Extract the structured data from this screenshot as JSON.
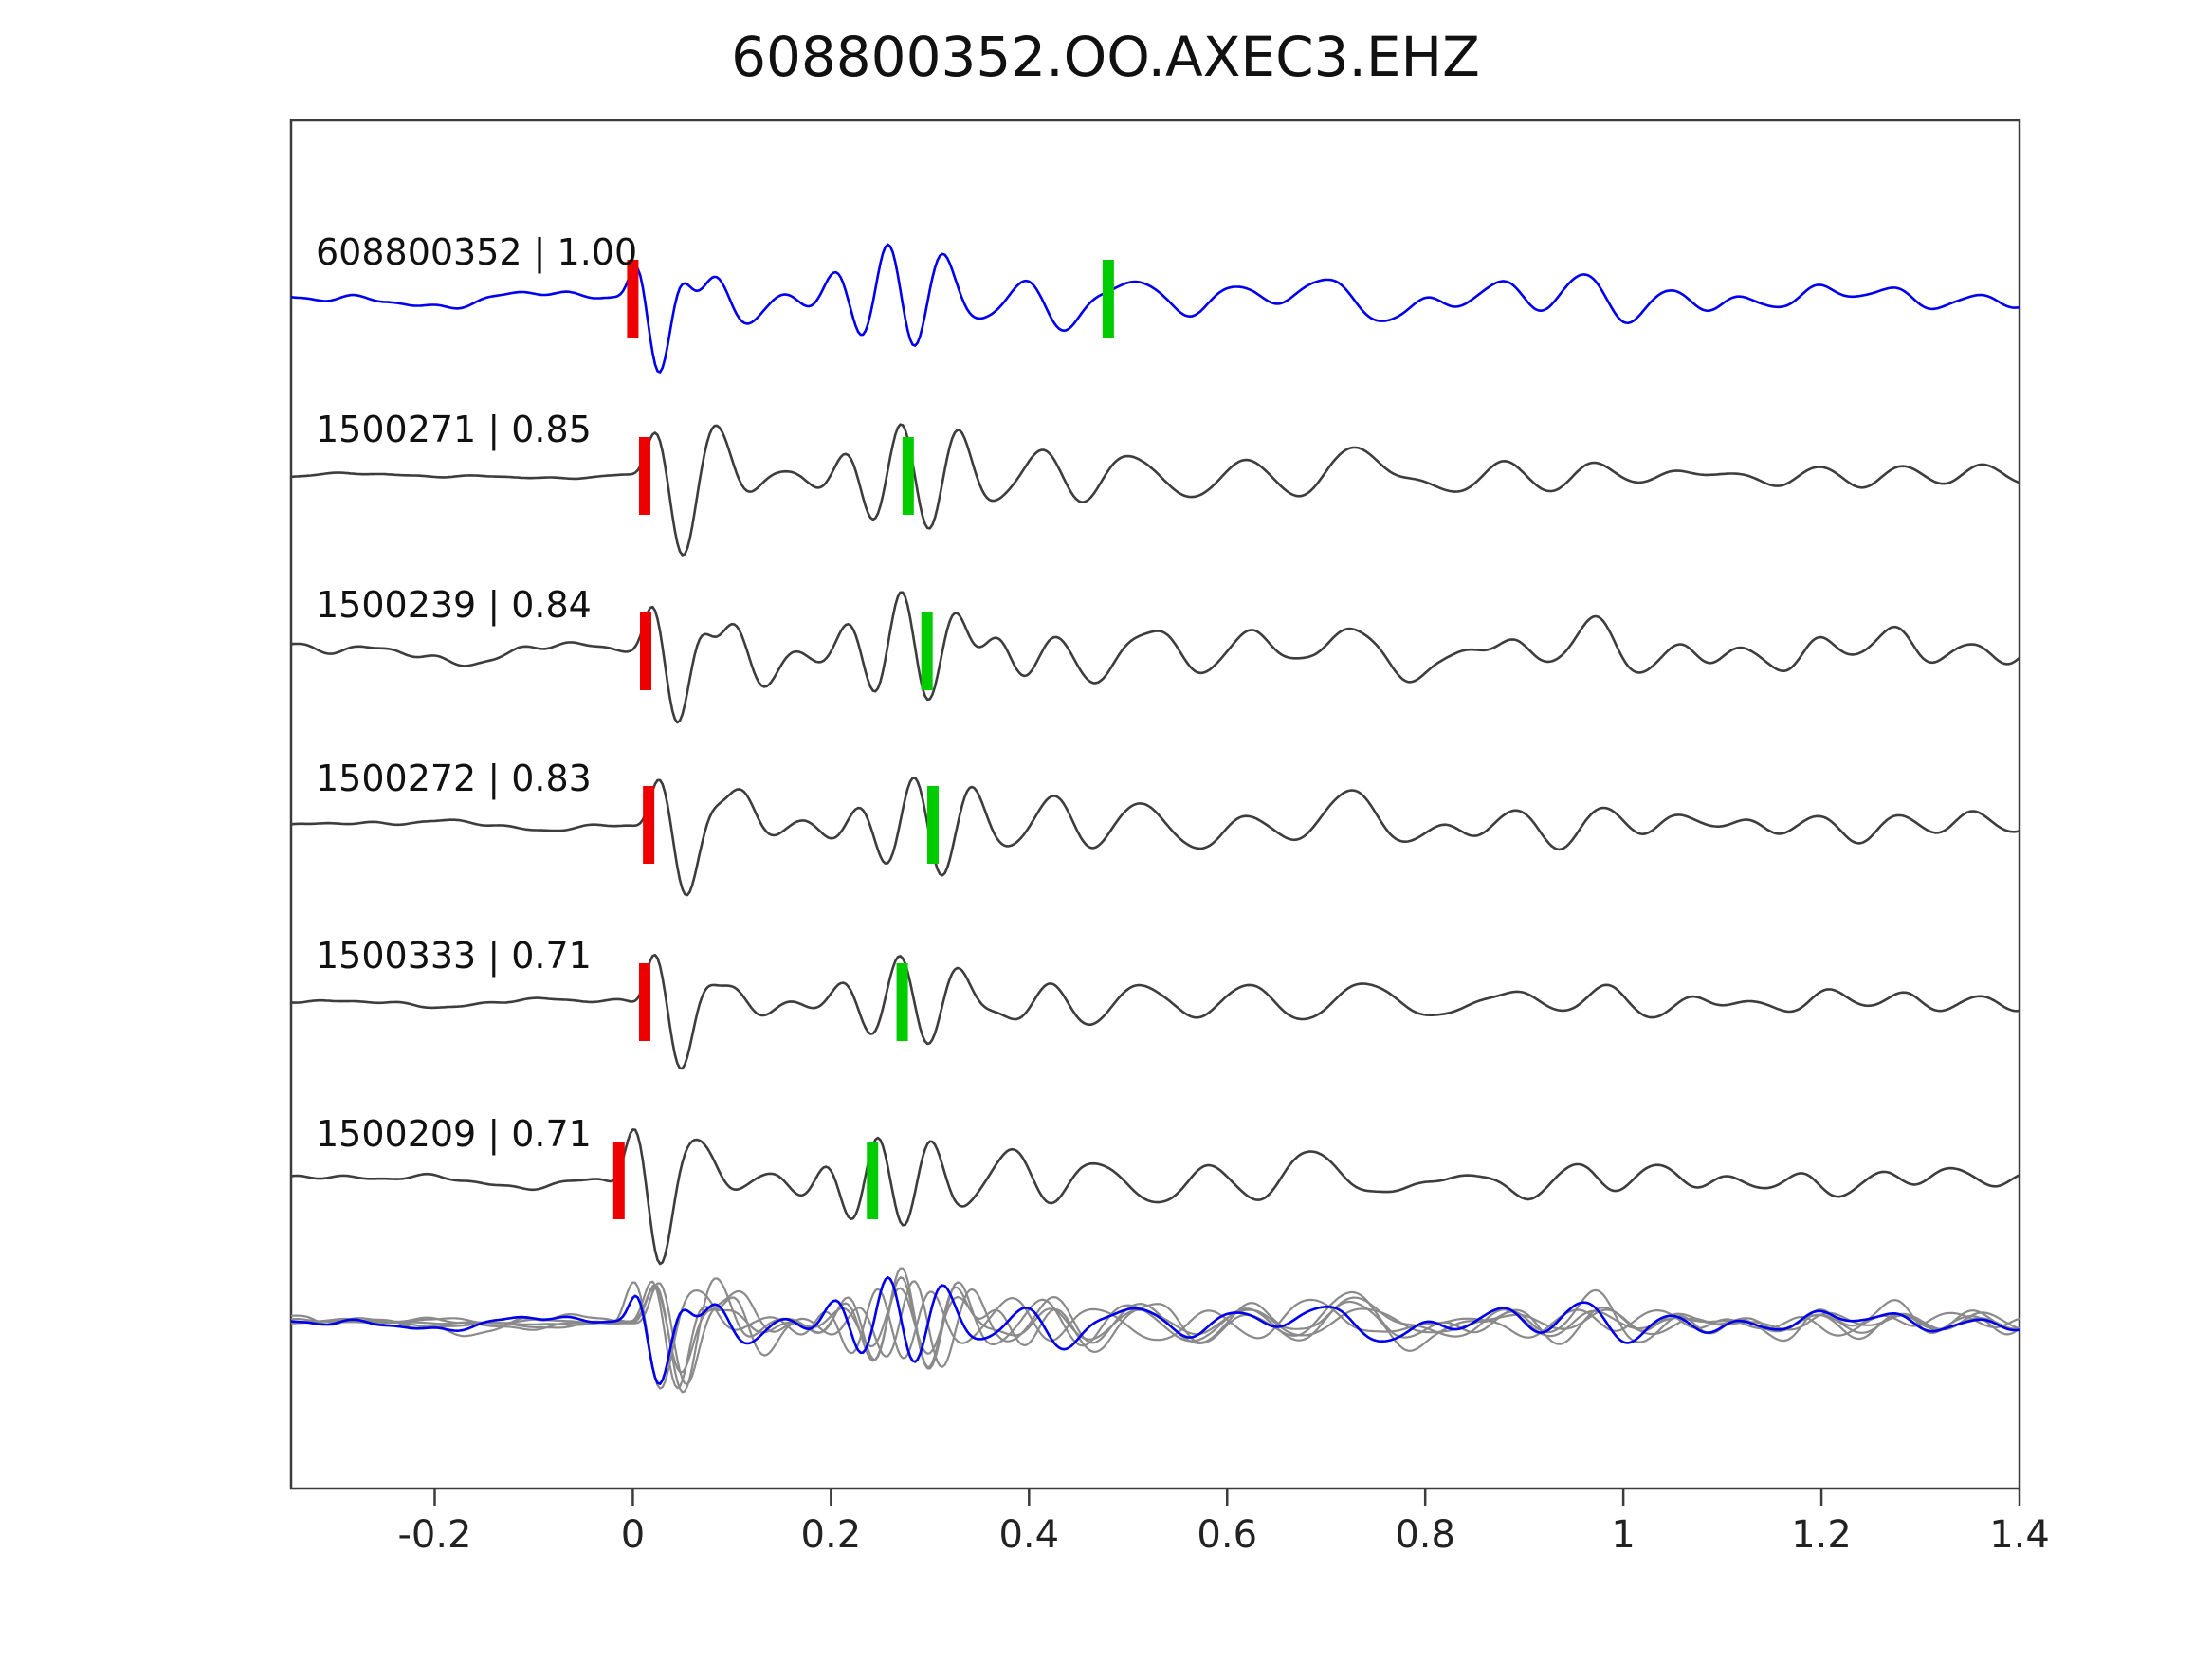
{
  "chart_data": {
    "type": "line",
    "title": "608800352.OO.AXEC3.EHZ",
    "xlabel": "",
    "ylabel": "",
    "grid": false,
    "legend": "none",
    "x_axis": {
      "lim": [
        -0.345,
        1.4
      ],
      "ticks": [
        -0.2,
        0,
        0.2,
        0.4,
        0.6,
        0.8,
        1,
        1.2,
        1.4
      ],
      "tick_labels": [
        "-0.2",
        "0",
        "0.2",
        "0.4",
        "0.6",
        "0.8",
        "1",
        "1.2",
        "1.4"
      ]
    },
    "traces": [
      {
        "event_id": "608800352",
        "correlation": "1.00",
        "label": "608800352 | 1.00",
        "role": "template",
        "red_marker": 0.0,
        "green_marker": 0.48,
        "noise": 0.15,
        "amp": 0.95,
        "seed": 7
      },
      {
        "event_id": "1500271",
        "correlation": "0.85",
        "label": "1500271 | 0.85",
        "role": "match",
        "red_marker": 0.012,
        "green_marker": 0.278,
        "noise": 0.045,
        "amp": 1.0,
        "seed": 13
      },
      {
        "event_id": "1500239",
        "correlation": "0.84",
        "label": "1500239 | 0.84",
        "role": "match",
        "red_marker": 0.013,
        "green_marker": 0.297,
        "noise": 0.2,
        "amp": 1.05,
        "seed": 21
      },
      {
        "event_id": "1500272",
        "correlation": "0.83",
        "label": "1500272 | 0.83",
        "role": "match",
        "red_marker": 0.016,
        "green_marker": 0.303,
        "noise": 0.09,
        "amp": 1.0,
        "seed": 34
      },
      {
        "event_id": "1500333",
        "correlation": "0.71",
        "label": "1500333 | 0.71",
        "role": "match",
        "red_marker": 0.012,
        "green_marker": 0.272,
        "noise": 0.08,
        "amp": 0.85,
        "seed": 55
      },
      {
        "event_id": "1500209",
        "correlation": "0.71",
        "label": "1500209 | 0.71",
        "role": "match",
        "red_marker": -0.014,
        "green_marker": 0.242,
        "noise": 0.12,
        "amp": 0.9,
        "seed": 89
      }
    ],
    "overlay_row": {
      "description": "all six traces overlaid aligned on pick, template highlighted in blue on top",
      "gray_traces": 6,
      "highlight": "608800352"
    },
    "colors": {
      "template_blue": "#0000ee",
      "match_gray": "#3d3d3d",
      "overlay_gray": "#8a8a8a",
      "red_pick": "#ee0000",
      "green_pick": "#00cc00",
      "axis": "#3c3c3c"
    }
  }
}
